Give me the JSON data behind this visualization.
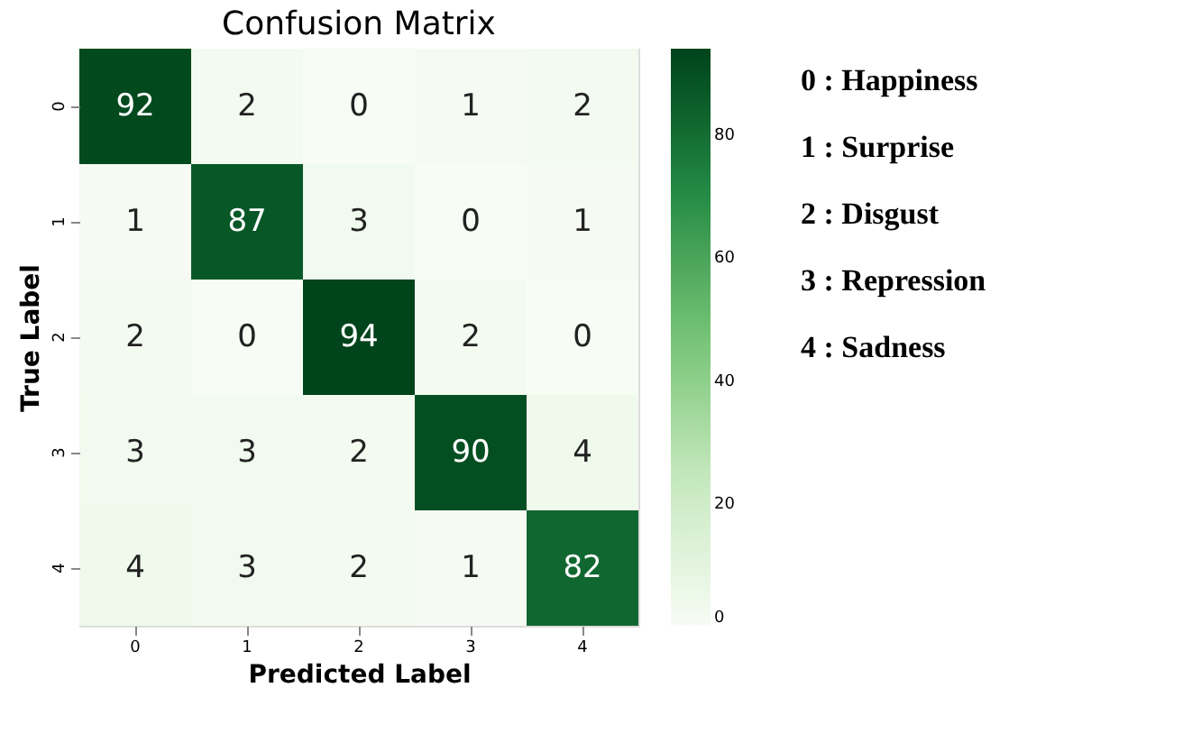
{
  "chart_data": {
    "type": "heatmap",
    "title": "Confusion Matrix",
    "xlabel": "Predicted Label",
    "ylabel": "True Label",
    "categories": [
      "0",
      "1",
      "2",
      "3",
      "4"
    ],
    "y_categories": [
      "0",
      "1",
      "2",
      "3",
      "4"
    ],
    "cells": [
      [
        92,
        2,
        0,
        1,
        2
      ],
      [
        1,
        87,
        3,
        0,
        1
      ],
      [
        2,
        0,
        94,
        2,
        0
      ],
      [
        3,
        3,
        2,
        90,
        4
      ],
      [
        4,
        3,
        2,
        1,
        82
      ]
    ],
    "data_labels": true,
    "clim": [
      0,
      94
    ],
    "cticks": [
      0,
      20,
      40,
      60,
      80
    ],
    "annotations": [
      "0 : Happiness",
      "1 : Surprise",
      "2 : Disgust",
      "3 : Repression",
      "4 : Sadness"
    ]
  }
}
